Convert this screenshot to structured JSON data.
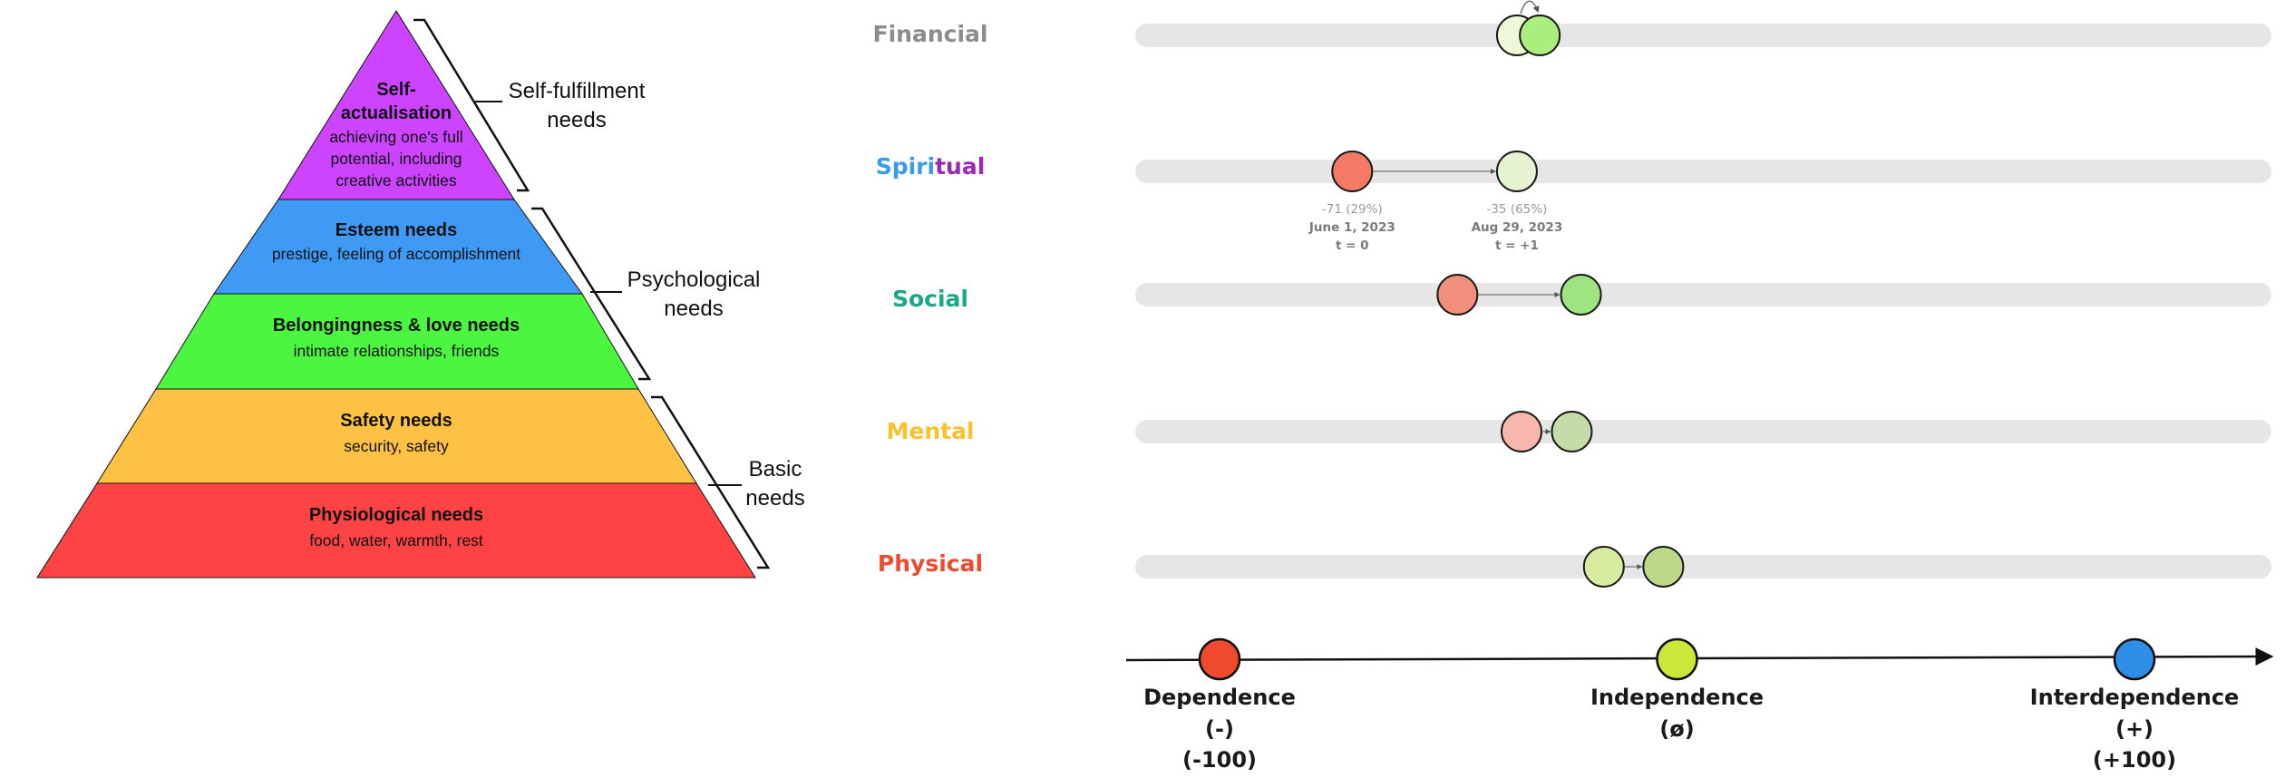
{
  "pyramid": {
    "levels": [
      {
        "title_lines": [
          "Self-",
          "actualisation"
        ],
        "desc_lines": [
          "achieving one's full",
          "potential, including",
          "creative activities"
        ],
        "color": "#cc44ff"
      },
      {
        "title_lines": [
          "Esteem needs"
        ],
        "desc_lines": [
          "prestige, feeling of accomplishment"
        ],
        "color": "#3f9af5"
      },
      {
        "title_lines": [
          "Belongingness & love needs"
        ],
        "desc_lines": [
          "intimate relationships, friends"
        ],
        "color": "#4cf53f"
      },
      {
        "title_lines": [
          "Safety needs"
        ],
        "desc_lines": [
          "security, safety"
        ],
        "color": "#fdc143"
      },
      {
        "title_lines": [
          "Physiological needs"
        ],
        "desc_lines": [
          "food, water, warmth, rest"
        ],
        "color": "#fd4343"
      }
    ],
    "groups": [
      {
        "lines": [
          "Self-fulfillment",
          "needs"
        ]
      },
      {
        "lines": [
          "Psychological",
          "needs"
        ]
      },
      {
        "lines": [
          "Basic",
          "needs"
        ]
      }
    ]
  },
  "tracks": [
    {
      "name": "Financial",
      "color": "#8c8c8c",
      "from": {
        "value": -35,
        "color": "#eef8d8"
      },
      "to": {
        "value": -30,
        "color": "#aaee80"
      },
      "arrow": "loop"
    },
    {
      "name_parts": [
        {
          "text": "Spiri",
          "color": "#3a9be6"
        },
        {
          "text": "tual",
          "color": "#9c27b0"
        }
      ],
      "from": {
        "value": -71,
        "color": "#f47a65"
      },
      "to": {
        "value": -35,
        "color": "#e6f3d2"
      },
      "arrow": "line",
      "annotations": [
        {
          "value_label": "-71 (29%)",
          "date": "June 1, 2023",
          "t": "t = 0"
        },
        {
          "value_label": "-35 (65%)",
          "date": "Aug 29, 2023",
          "t": "t = +1"
        }
      ]
    },
    {
      "name": "Social",
      "color": "#1aa889",
      "from": {
        "value": -48,
        "color": "#f0907c"
      },
      "to": {
        "value": -21,
        "color": "#9ee480"
      },
      "arrow": "line"
    },
    {
      "name": "Mental",
      "color": "#fbc02d",
      "from": {
        "value": -34,
        "color": "#f9b6ad"
      },
      "to": {
        "value": -23,
        "color": "#c3dca8"
      },
      "arrow": "line"
    },
    {
      "name": "Physical",
      "color": "#f04a2e",
      "from": {
        "value": -16,
        "color": "#d8eca0"
      },
      "to": {
        "value": -3,
        "color": "#bcd98a"
      },
      "arrow": "line"
    }
  ],
  "axis": {
    "points": [
      {
        "value": -100,
        "color": "#f04a2e",
        "lines": [
          "Dependence",
          "(-)",
          "(-100)"
        ]
      },
      {
        "value": 0,
        "color": "#cde63a",
        "lines": [
          "Independence",
          "(ø)"
        ]
      },
      {
        "value": 100,
        "color": "#2f8fe8",
        "lines": [
          "Interdependence",
          "(+)",
          "(+100)"
        ]
      }
    ]
  }
}
